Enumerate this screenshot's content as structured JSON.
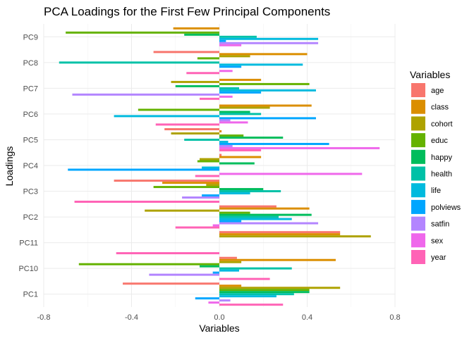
{
  "chart_data": {
    "type": "bar",
    "orientation": "horizontal",
    "title": "PCA Loadings for the First Few Principal Components",
    "xlabel": "Variables",
    "ylabel": "Loadings",
    "xlim": [
      -0.8,
      0.8
    ],
    "x_ticks": [
      "-0.8",
      "-0.4",
      "0.0",
      "0.4",
      "0.8"
    ],
    "x_tick_values": [
      -0.8,
      -0.4,
      0.0,
      0.4,
      0.8
    ],
    "grid": true,
    "legend_position": "right",
    "legend_title": "Variables",
    "categories": [
      "PC1",
      "PC10",
      "PC11",
      "PC2",
      "PC3",
      "PC4",
      "PC5",
      "PC6",
      "PC7",
      "PC8",
      "PC9"
    ],
    "series": [
      {
        "name": "age",
        "color": "#F8766D",
        "values": [
          -0.44,
          0.08,
          0.55,
          0.26,
          -0.48,
          0.01,
          -0.25,
          0.0,
          0.0,
          -0.3,
          0.0
        ]
      },
      {
        "name": "class",
        "color": "#DB8E00",
        "values": [
          0.1,
          0.53,
          0.55,
          0.41,
          -0.26,
          0.19,
          0.01,
          0.42,
          0.19,
          0.4,
          -0.21
        ]
      },
      {
        "name": "cohort",
        "color": "#AEA200",
        "values": [
          0.55,
          0.1,
          0.69,
          -0.34,
          -0.06,
          -0.09,
          -0.22,
          0.23,
          -0.22,
          0.14,
          0.0
        ]
      },
      {
        "name": "educ",
        "color": "#64B200",
        "values": [
          0.41,
          -0.64,
          0.0,
          0.14,
          -0.3,
          -0.1,
          0.11,
          -0.37,
          0.41,
          -0.1,
          -0.7
        ]
      },
      {
        "name": "happy",
        "color": "#00BD5C",
        "values": [
          0.41,
          -0.09,
          0.0,
          0.42,
          0.2,
          0.16,
          0.29,
          0.14,
          -0.2,
          0.0,
          -0.16
        ]
      },
      {
        "name": "health",
        "color": "#00C1A7",
        "values": [
          0.34,
          0.33,
          0.0,
          0.27,
          0.28,
          0.0,
          -0.16,
          0.19,
          0.09,
          -0.73,
          0.17
        ]
      },
      {
        "name": "life",
        "color": "#00BADE",
        "values": [
          0.26,
          0.09,
          0.0,
          0.33,
          0.14,
          -0.08,
          0.04,
          -0.48,
          0.44,
          0.38,
          0.45
        ]
      },
      {
        "name": "polviews",
        "color": "#00A6FF",
        "values": [
          -0.11,
          -0.03,
          0.0,
          0.1,
          -0.08,
          -0.69,
          0.5,
          0.44,
          0.19,
          0.1,
          0.03
        ]
      },
      {
        "name": "satfin",
        "color": "#B385FF",
        "values": [
          0.05,
          -0.32,
          0.0,
          0.45,
          -0.17,
          0.0,
          0.06,
          0.05,
          -0.67,
          0.0,
          0.45
        ]
      },
      {
        "name": "sex",
        "color": "#EF67EB",
        "values": [
          -0.05,
          0.0,
          0.0,
          -0.03,
          0.0,
          0.65,
          0.73,
          0.13,
          0.06,
          0.06,
          0.1
        ]
      },
      {
        "name": "year",
        "color": "#FF63B6",
        "values": [
          0.29,
          0.23,
          -0.47,
          -0.2,
          -0.66,
          -0.11,
          0.19,
          -0.29,
          -0.09,
          -0.15,
          0.0
        ]
      }
    ]
  }
}
